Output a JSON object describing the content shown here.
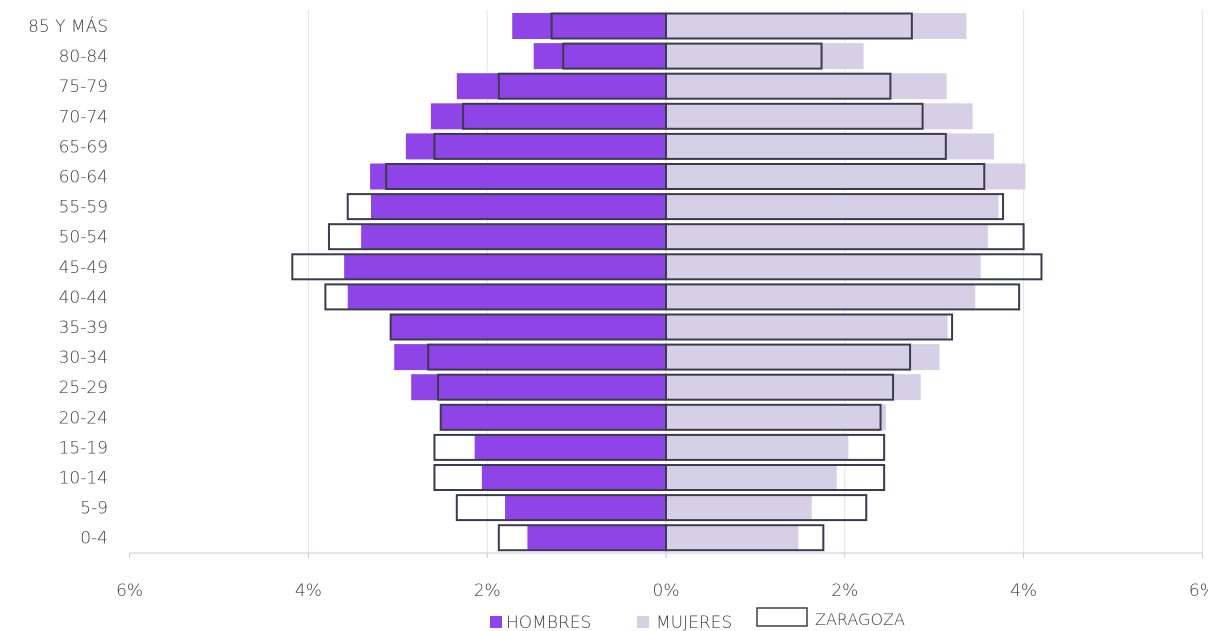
{
  "chart_data": {
    "type": "bar",
    "orientation": "horizontal",
    "title": "",
    "categories": [
      "85 Y MÁS",
      "80-84",
      "75-79",
      "70-74",
      "65-69",
      "60-64",
      "55-59",
      "50-54",
      "45-49",
      "40-44",
      "35-39",
      "30-34",
      "25-29",
      "20-24",
      "15-19",
      "10-14",
      "5-9",
      "0-4"
    ],
    "x_ticks": [
      "6%",
      "4%",
      "2%",
      "0%",
      "2%",
      "4%",
      "6%"
    ],
    "xlim": [
      -6,
      6
    ],
    "grid": "vertical",
    "legend_position": "bottom",
    "series": [
      {
        "name": "HOMBRES",
        "color": "#8e44e6",
        "side": "left",
        "values": [
          1.72,
          1.48,
          2.34,
          2.63,
          2.91,
          3.31,
          3.3,
          3.41,
          3.6,
          3.56,
          3.08,
          3.04,
          2.85,
          2.52,
          2.14,
          2.06,
          1.8,
          1.55
        ]
      },
      {
        "name": "MUJERES",
        "color": "#d6d0e7",
        "side": "right",
        "values": [
          3.36,
          2.21,
          3.14,
          3.43,
          3.67,
          4.02,
          3.72,
          3.6,
          3.52,
          3.46,
          3.15,
          3.06,
          2.85,
          2.46,
          2.04,
          1.91,
          1.63,
          1.48
        ]
      },
      {
        "name": "ZARAGOZA",
        "color": "#3b3b4f",
        "style": "outline",
        "values_left": [
          1.28,
          1.15,
          1.87,
          2.27,
          2.59,
          3.13,
          3.56,
          3.77,
          4.18,
          3.81,
          3.08,
          2.66,
          2.55,
          2.52,
          2.59,
          2.59,
          2.34,
          1.87
        ],
        "values_right": [
          2.75,
          1.74,
          2.51,
          2.87,
          3.13,
          3.56,
          3.77,
          4.0,
          4.2,
          3.95,
          3.2,
          2.73,
          2.54,
          2.4,
          2.44,
          2.44,
          2.24,
          1.76
        ]
      }
    ]
  }
}
